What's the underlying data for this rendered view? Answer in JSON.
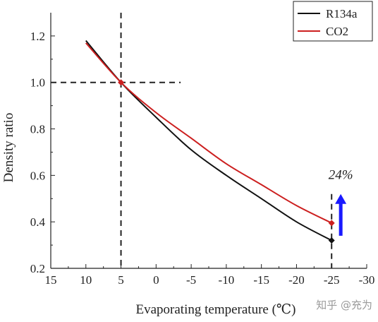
{
  "chart_data": {
    "type": "line",
    "title": "",
    "xlabel": "Evaporating temperature (℃)",
    "ylabel": "Density ratio",
    "xlim": [
      15,
      -30
    ],
    "ylim": [
      0.2,
      1.3
    ],
    "x_ticks": [
      15,
      10,
      5,
      0,
      -5,
      -10,
      -15,
      -20,
      -25,
      -30
    ],
    "x_tick_labels": [
      "15",
      "10",
      "5",
      "0",
      "-5",
      "-10",
      "-15",
      "-20",
      "-25",
      "-30"
    ],
    "y_ticks": [
      0.2,
      0.4,
      0.6,
      0.8,
      1.0,
      1.2
    ],
    "y_tick_labels": [
      "0.2",
      "0.4",
      "0.6",
      "0.8",
      "1.0",
      "1.2"
    ],
    "grid": false,
    "legend_position": "top-right",
    "series": [
      {
        "name": "R134a",
        "color": "#111111",
        "x": [
          10,
          5,
          0,
          -5,
          -10,
          -15,
          -20,
          -25
        ],
        "y": [
          1.18,
          1.0,
          0.85,
          0.71,
          0.6,
          0.5,
          0.4,
          0.32
        ]
      },
      {
        "name": "CO2",
        "color": "#cc1f1f",
        "x": [
          10,
          5,
          0,
          -5,
          -10,
          -15,
          -20,
          -25
        ],
        "y": [
          1.17,
          1.0,
          0.87,
          0.76,
          0.65,
          0.56,
          0.47,
          0.395
        ]
      }
    ],
    "reference_lines": [
      {
        "orientation": "vertical",
        "x": 5,
        "y_range": [
          0.2,
          1.3
        ]
      },
      {
        "orientation": "horizontal",
        "y": 1.0,
        "x_range": [
          15,
          -3.5
        ]
      },
      {
        "orientation": "vertical",
        "x": -25,
        "y_range": [
          0.2,
          0.52
        ]
      }
    ],
    "markers": [
      {
        "x": 5,
        "y": 1.0,
        "color": "#cc1f1f"
      },
      {
        "x": -25,
        "y": 0.32,
        "color": "#111111"
      },
      {
        "x": -25,
        "y": 0.395,
        "color": "#cc1f1f"
      }
    ],
    "annotations": [
      {
        "text": "24%",
        "x": -26.3,
        "y": 0.585
      }
    ],
    "arrow": {
      "color": "#1a1aff",
      "x": -26.3,
      "y_from": 0.34,
      "y_to": 0.52
    }
  },
  "watermark": "知乎 @充为"
}
